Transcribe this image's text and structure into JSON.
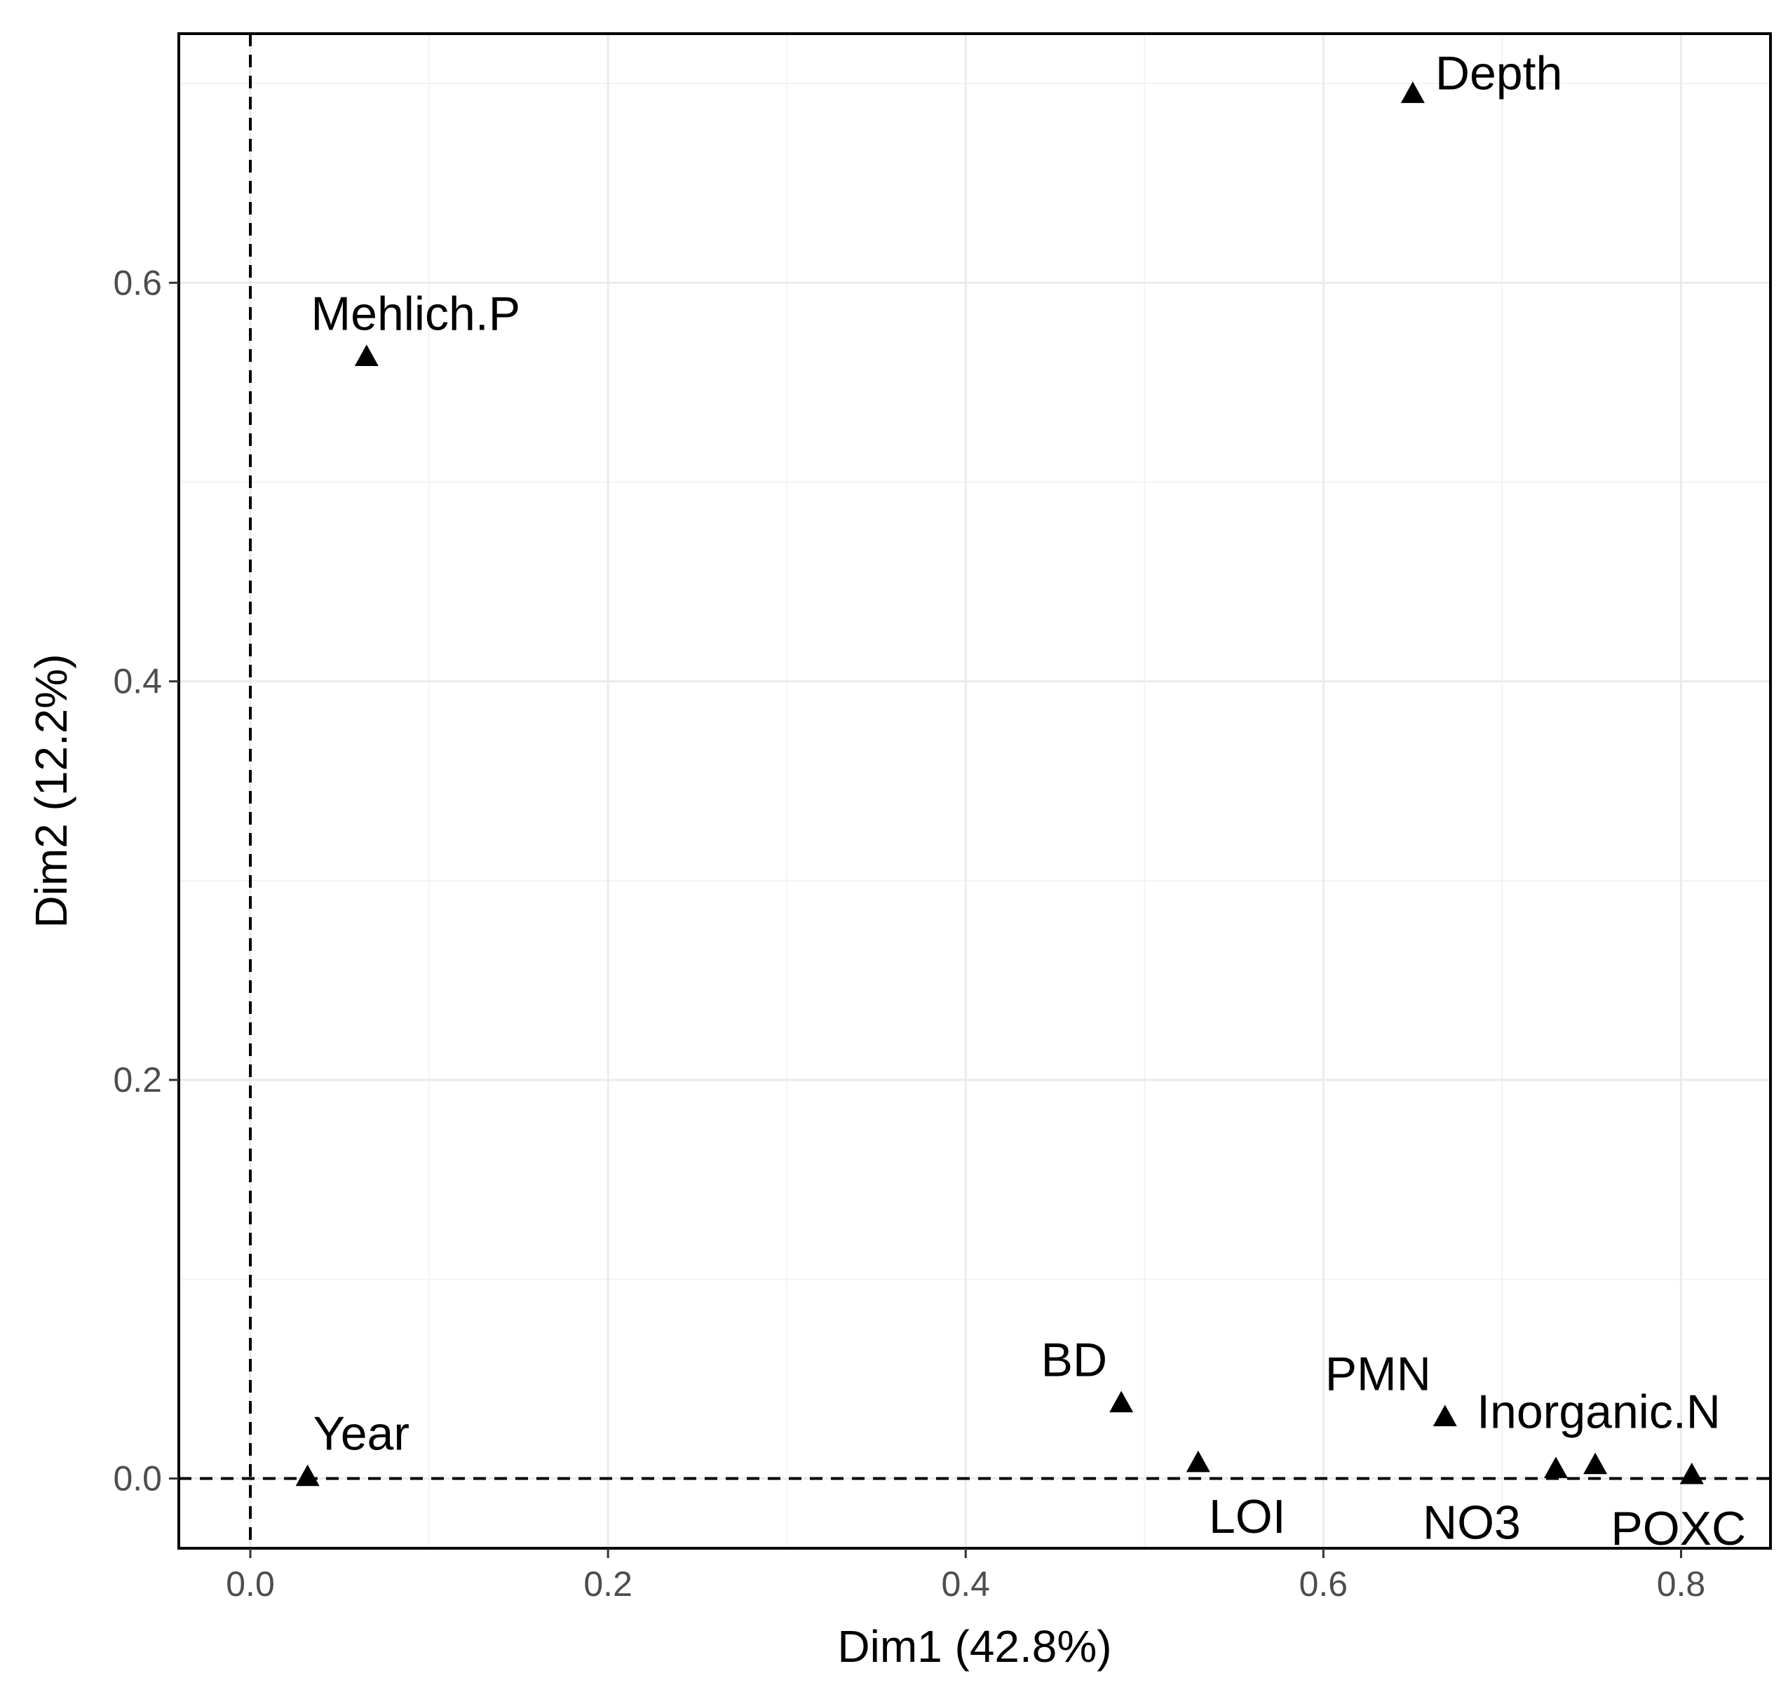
{
  "chart_data": {
    "type": "scatter",
    "xlabel": "Dim1 (42.8%)",
    "ylabel": "Dim2 (12.2%)",
    "xlim": [
      -0.04,
      0.85
    ],
    "ylim": [
      -0.035,
      0.725
    ],
    "x_ticks": [
      "0.0",
      "0.2",
      "0.4",
      "0.6",
      "0.8"
    ],
    "y_ticks": [
      "0.0",
      "0.2",
      "0.4",
      "0.6"
    ],
    "grid": true,
    "reference_lines": {
      "x": 0,
      "y": 0,
      "style": "dashed"
    },
    "marker": "triangle",
    "points": [
      {
        "label": "Depth",
        "x": 0.65,
        "y": 0.695,
        "label_pos": "right"
      },
      {
        "label": "Mehlich.P",
        "x": 0.065,
        "y": 0.563,
        "label_pos": "above"
      },
      {
        "label": "BD",
        "x": 0.487,
        "y": 0.038,
        "label_pos": "upper-left"
      },
      {
        "label": "PMN",
        "x": 0.668,
        "y": 0.031,
        "label_pos": "upper-left"
      },
      {
        "label": "Inorganic.N",
        "x": 0.752,
        "y": 0.007,
        "label_pos": "above"
      },
      {
        "label": "Year",
        "x": 0.032,
        "y": 0.001,
        "label_pos": "above"
      },
      {
        "label": "LOI",
        "x": 0.53,
        "y": 0.008,
        "label_pos": "below"
      },
      {
        "label": "NO3",
        "x": 0.73,
        "y": 0.005,
        "label_pos": "below"
      },
      {
        "label": "POXC",
        "x": 0.806,
        "y": 0.002,
        "label_pos": "below"
      }
    ]
  }
}
